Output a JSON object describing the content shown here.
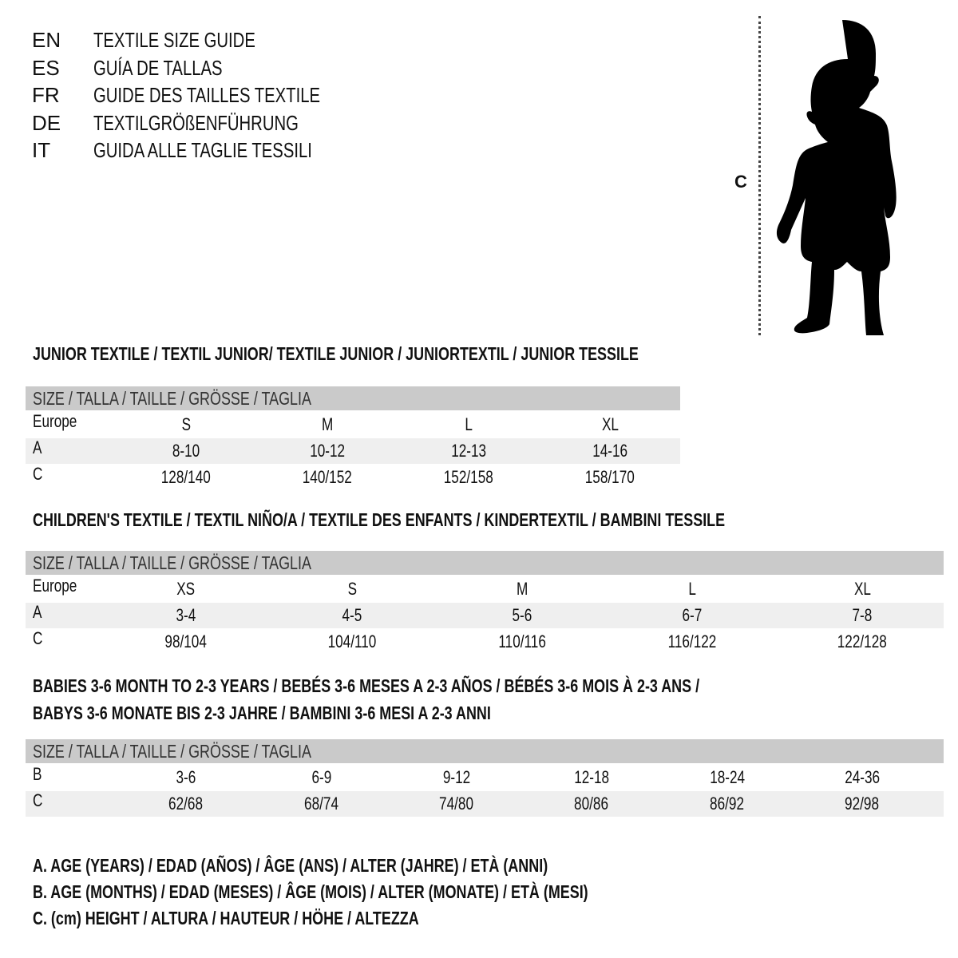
{
  "titles": [
    {
      "code": "EN",
      "text": "TEXTILE SIZE GUIDE"
    },
    {
      "code": "ES",
      "text": "GUÍA DE TALLAS"
    },
    {
      "code": "FR",
      "text": "GUIDE DES TAILLES TEXTILE"
    },
    {
      "code": "DE",
      "text": "TEXTILGRÖßENFÜHRUNG"
    },
    {
      "code": "IT",
      "text": "GUIDA ALLE TAGLIE TESSILI"
    }
  ],
  "figure": {
    "label": "C",
    "icon": "child-silhouette-icon"
  },
  "header_label": "SIZE / TALLA / TAILLE / GRÖSSE / TAGLIA",
  "tables": [
    {
      "title_lines": [
        "JUNIOR TEXTILE / TEXTIL JUNIOR/ TEXTILE JUNIOR / JUNIORTEXTIL / JUNIOR TESSILE"
      ],
      "rows": [
        {
          "label": "Europe",
          "values": [
            "S",
            "M",
            "L",
            "XL"
          ]
        },
        {
          "label": "A",
          "values": [
            "8-10",
            "10-12",
            "12-13",
            "14-16"
          ]
        },
        {
          "label": "C",
          "values": [
            "128/140",
            "140/152",
            "152/158",
            "158/170"
          ]
        }
      ]
    },
    {
      "title_lines": [
        "CHILDREN'S TEXTILE / TEXTIL NIÑO/A / TEXTILE DES ENFANTS / KINDERTEXTIL / BAMBINI TESSILE"
      ],
      "rows": [
        {
          "label": "Europe",
          "values": [
            "XS",
            "S",
            "M",
            "L",
            "XL"
          ]
        },
        {
          "label": "A",
          "values": [
            "3-4",
            "4-5",
            "5-6",
            "6-7",
            "7-8"
          ]
        },
        {
          "label": "C",
          "values": [
            "98/104",
            "104/110",
            "110/116",
            "116/122",
            "122/128"
          ]
        }
      ]
    },
    {
      "title_lines": [
        "BABIES 3-6 MONTH TO 2-3 YEARS / BEBÉS 3-6 MESES A 2-3 AÑOS / BÉBÉS 3-6 MOIS À 2-3 ANS /",
        "BABYS 3-6 MONATE BIS 2-3 JAHRE / BAMBINI 3-6 MESI A 2-3 ANNI"
      ],
      "rows": [
        {
          "label": "B",
          "values": [
            "3-6",
            "6-9",
            "9-12",
            "12-18",
            "18-24",
            "24-36"
          ]
        },
        {
          "label": "C",
          "values": [
            "62/68",
            "68/74",
            "74/80",
            "80/86",
            "86/92",
            "92/98"
          ]
        }
      ]
    }
  ],
  "legend": [
    "A. AGE (YEARS) / EDAD (AÑOS) / ÂGE (ANS) / ALTER (JAHRE) / ETÀ (ANNI)",
    "B. AGE (MONTHS) / EDAD (MESES) / ÂGE (MOIS) / ALTER (MONATE) / ETÀ (MESI)",
    "C. (cm) HEIGHT / ALTURA / HAUTEUR / HÖHE / ALTEZZA"
  ],
  "colors": {
    "header_bg": "#cacaca",
    "stripe_bg": "#efefef",
    "text": "#111111"
  }
}
